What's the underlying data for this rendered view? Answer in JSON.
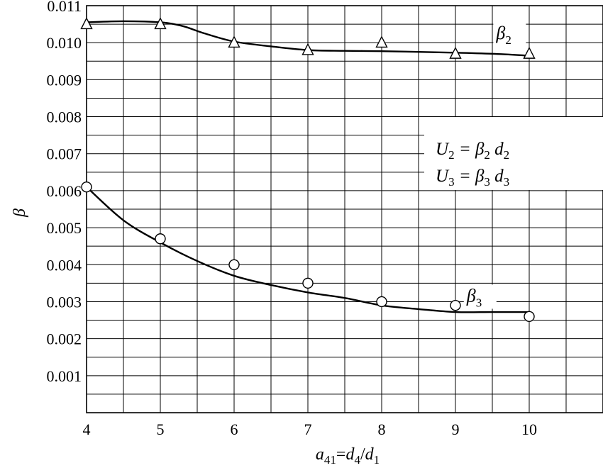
{
  "chart_data": {
    "type": "line",
    "title": "",
    "xlabel": "a41=d4/d1",
    "ylabel": "β",
    "xlim": [
      4,
      11
    ],
    "ylim": [
      0,
      0.011
    ],
    "xticks": [
      4,
      5,
      6,
      7,
      8,
      9,
      10
    ],
    "xtick_labels": [
      "4",
      "5",
      "6",
      "7",
      "8",
      "9",
      "10"
    ],
    "yticks": [
      0.001,
      0.002,
      0.003,
      0.004,
      0.005,
      0.006,
      0.007,
      0.008,
      0.009,
      0.01,
      0.011
    ],
    "ytick_labels": [
      "0.001",
      "0.002",
      "0.003",
      "0.004",
      "0.005",
      "0.006",
      "0.007",
      "0.008",
      "0.009",
      "0.010",
      "0.011"
    ],
    "grid": true,
    "series": [
      {
        "name": "β2",
        "marker": "triangle",
        "points": {
          "x": [
            4,
            5,
            6,
            7,
            8,
            9,
            10
          ],
          "y": [
            0.0105,
            0.0105,
            0.01,
            0.0098,
            0.01,
            0.0097,
            0.0097
          ]
        },
        "curve": {
          "x": [
            4.0,
            4.5,
            5.0,
            5.3,
            5.6,
            6.0,
            6.5,
            7.0,
            7.5,
            8.0,
            8.5,
            9.0,
            9.5,
            10.0
          ],
          "y": [
            0.01055,
            0.01058,
            0.01055,
            0.01045,
            0.01025,
            0.01003,
            0.0099,
            0.0098,
            0.00978,
            0.00977,
            0.00975,
            0.00973,
            0.0097,
            0.00965
          ]
        }
      },
      {
        "name": "β3",
        "marker": "circle",
        "points": {
          "x": [
            4,
            5,
            6,
            7,
            8,
            9,
            10
          ],
          "y": [
            0.0061,
            0.0047,
            0.004,
            0.0035,
            0.003,
            0.0029,
            0.0026
          ]
        },
        "curve": {
          "x": [
            4.0,
            4.5,
            5.0,
            5.5,
            6.0,
            6.5,
            7.0,
            7.5,
            8.0,
            8.5,
            9.0,
            9.5,
            10.0
          ],
          "y": [
            0.0061,
            0.0052,
            0.0046,
            0.0041,
            0.0037,
            0.00345,
            0.00325,
            0.0031,
            0.0029,
            0.0028,
            0.00272,
            0.00272,
            0.00272
          ]
        }
      }
    ],
    "legend_box": {
      "lines": [
        {
          "u": "U",
          "us": "2",
          "eq": " = ",
          "b": "β",
          "bs": "2",
          "d": " d",
          "ds": "2"
        },
        {
          "u": "U",
          "us": "3",
          "eq": " = ",
          "b": "β",
          "bs": "3",
          "d": " d",
          "ds": "3"
        }
      ]
    },
    "curve_labels": [
      {
        "base": "β",
        "sub": "2",
        "x": 9.6,
        "y": 0.0101
      },
      {
        "base": "β",
        "sub": "3",
        "x": 9.2,
        "y": 0.003
      }
    ],
    "xlabel_parts": {
      "a": "a",
      "a_sub": "41",
      "eq": "=",
      "d4": "d",
      "d4_sub": "4",
      "slash": "/",
      "d1": "d",
      "d1_sub": "1"
    },
    "ylabel_text": "β"
  }
}
